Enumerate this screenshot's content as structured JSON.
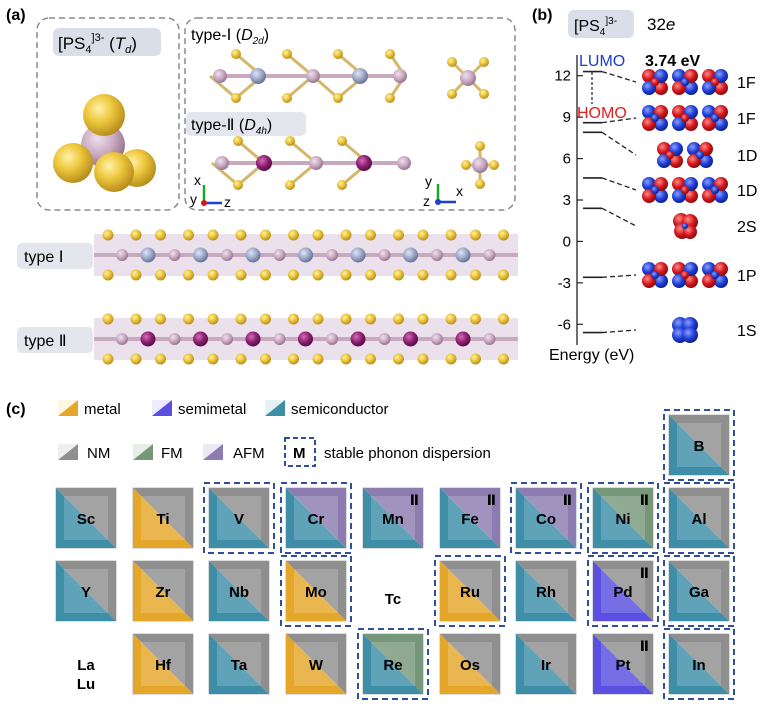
{
  "panel_a": {
    "label": "(a)",
    "tetra_title_base": "[PS",
    "tetra_title_sub": "4",
    "tetra_title_sup": "]3-",
    "tetra_title_sym_open": " (",
    "tetra_title_sym": "T",
    "tetra_title_sym_sub": "d",
    "tetra_title_sym_close": ")",
    "type1_title": "type-Ⅰ (",
    "type1_sym": "D",
    "type1_sym_sub": "2d",
    "type2_title": "type-Ⅱ (",
    "type2_sym": "D",
    "type2_sym_sub": "4h",
    "close_paren": ")",
    "axes_left": {
      "x": "x",
      "y": "y",
      "z": "z"
    },
    "axes_right": {
      "y": "y",
      "z": "z",
      "x": "x"
    },
    "chain1_label": "type Ⅰ",
    "chain2_label": "type Ⅱ"
  },
  "panel_b": {
    "label": "(b)",
    "badge_base": "[PS",
    "badge_sub": "4",
    "badge_sup": "]3-",
    "electrons_num": "32",
    "electrons_sym": "e",
    "lumo": "LUMO",
    "homo": "HOMO",
    "gap": "3.74 eV",
    "ylabel": "Energy (eV)",
    "ticks": [
      "12",
      "9",
      "6",
      "3",
      "0",
      "-3",
      "-6"
    ],
    "levels": [
      {
        "label": "1F",
        "energy": 12.3
      },
      {
        "label": "1F",
        "energy": 8.6
      },
      {
        "label": "1D",
        "energy": 7.9
      },
      {
        "label": "1D",
        "energy": 4.6
      },
      {
        "label": "2S",
        "energy": 2.4
      },
      {
        "label": "1P",
        "energy": -2.6
      },
      {
        "label": "1S",
        "energy": -6.6
      }
    ]
  },
  "panel_c": {
    "label": "(c)",
    "legend_metal": "metal",
    "legend_semimetal": "semimetal",
    "legend_semiconductor": "semiconductor",
    "legend_nm": "NM",
    "legend_fm": "FM",
    "legend_afm": "AFM",
    "legend_m": "M",
    "legend_stable": "stable phonon dispersion",
    "marker_II": "Ⅱ",
    "la": "La",
    "lu": "Lu",
    "tc": "Tc",
    "elements": [
      {
        "sym": "B",
        "elec": "semiconductor",
        "mag": "NM",
        "stable": true,
        "II": false
      },
      {
        "sym": "Sc",
        "elec": "semiconductor",
        "mag": "NM",
        "stable": false,
        "II": false
      },
      {
        "sym": "Ti",
        "elec": "metal",
        "mag": "NM",
        "stable": false,
        "II": false
      },
      {
        "sym": "V",
        "elec": "semiconductor",
        "mag": "NM",
        "stable": true,
        "II": false
      },
      {
        "sym": "Cr",
        "elec": "semiconductor",
        "mag": "AFM",
        "stable": true,
        "II": false
      },
      {
        "sym": "Mn",
        "elec": "semiconductor",
        "mag": "AFM",
        "stable": false,
        "II": true
      },
      {
        "sym": "Fe",
        "elec": "semiconductor",
        "mag": "AFM",
        "stable": false,
        "II": true
      },
      {
        "sym": "Co",
        "elec": "semiconductor",
        "mag": "AFM",
        "stable": true,
        "II": true
      },
      {
        "sym": "Ni",
        "elec": "semiconductor",
        "mag": "FM",
        "stable": true,
        "II": true
      },
      {
        "sym": "Al",
        "elec": "semiconductor",
        "mag": "NM",
        "stable": true,
        "II": false
      },
      {
        "sym": "Y",
        "elec": "semiconductor",
        "mag": "NM",
        "stable": false,
        "II": false
      },
      {
        "sym": "Zr",
        "elec": "metal",
        "mag": "NM",
        "stable": false,
        "II": false
      },
      {
        "sym": "Nb",
        "elec": "semiconductor",
        "mag": "NM",
        "stable": false,
        "II": false
      },
      {
        "sym": "Mo",
        "elec": "metal",
        "mag": "NM",
        "stable": true,
        "II": false
      },
      {
        "sym": "Ru",
        "elec": "metal",
        "mag": "NM",
        "stable": true,
        "II": false
      },
      {
        "sym": "Rh",
        "elec": "semiconductor",
        "mag": "NM",
        "stable": false,
        "II": false
      },
      {
        "sym": "Pd",
        "elec": "semimetal",
        "mag": "NM",
        "stable": true,
        "II": true
      },
      {
        "sym": "Ga",
        "elec": "semiconductor",
        "mag": "NM",
        "stable": true,
        "II": false
      },
      {
        "sym": "Hf",
        "elec": "metal",
        "mag": "NM",
        "stable": false,
        "II": false
      },
      {
        "sym": "Ta",
        "elec": "semiconductor",
        "mag": "NM",
        "stable": false,
        "II": false
      },
      {
        "sym": "W",
        "elec": "metal",
        "mag": "NM",
        "stable": false,
        "II": false
      },
      {
        "sym": "Re",
        "elec": "semiconductor",
        "mag": "FM",
        "stable": true,
        "II": false
      },
      {
        "sym": "Os",
        "elec": "metal",
        "mag": "NM",
        "stable": false,
        "II": false
      },
      {
        "sym": "Ir",
        "elec": "semiconductor",
        "mag": "NM",
        "stable": false,
        "II": false
      },
      {
        "sym": "Pt",
        "elec": "semimetal",
        "mag": "NM",
        "stable": false,
        "II": true
      },
      {
        "sym": "In",
        "elec": "semiconductor",
        "mag": "NM",
        "stable": true,
        "II": false
      }
    ]
  },
  "colors": {
    "sulfur": "#e8c23a",
    "phosphorus": "#c8a9c0",
    "metal_type1": "#9aa6c6",
    "metal_type2": "#8a1e6f",
    "metal": "#e5a72a",
    "semimetal": "#5a4fe0",
    "semiconductor": "#3e8ea8",
    "nm": "#8f8f8f",
    "fm": "#77977b",
    "afm": "#8c7cb0",
    "dash": "#2f4f9c",
    "lumo": "#1a3ad6",
    "homo": "#e11d1d",
    "lobe_red": "#d4161b",
    "lobe_blue": "#1f3fd6"
  }
}
